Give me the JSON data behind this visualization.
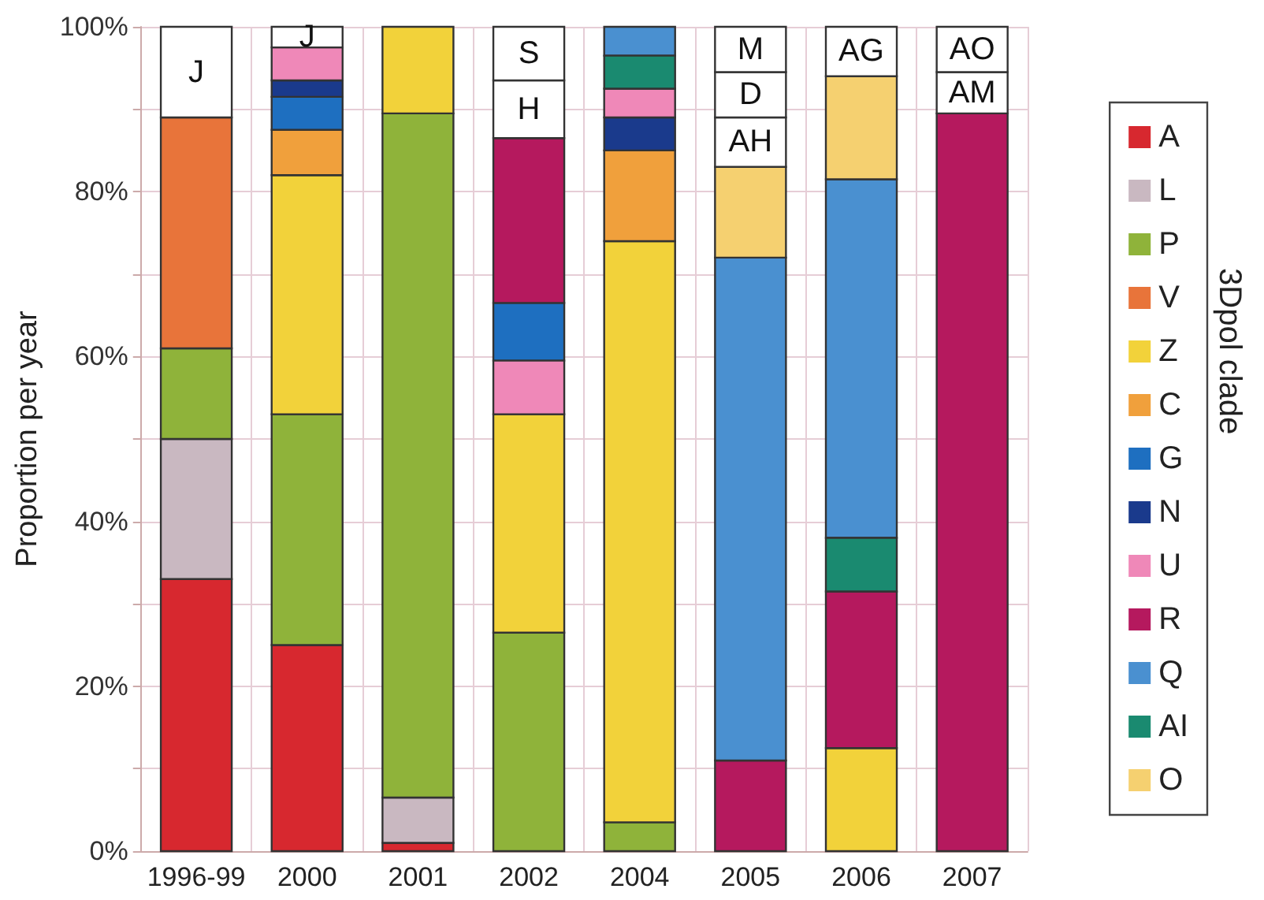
{
  "chart_data": {
    "type": "bar",
    "ylabel": "Proportion per year",
    "legend_title": "3Dpol clade",
    "legend": "right",
    "grid": true,
    "categories": [
      "1996-99",
      "2000",
      "2001",
      "2002",
      "2004",
      "2005",
      "2006",
      "2007"
    ],
    "ylim": [
      0,
      100
    ],
    "yticks": [
      {
        "value": 0,
        "label": "0%"
      },
      {
        "value": 10,
        "label": null
      },
      {
        "value": 20,
        "label": "20%"
      },
      {
        "value": 30,
        "label": null
      },
      {
        "value": 40,
        "label": "40%"
      },
      {
        "value": 50,
        "label": null
      },
      {
        "value": 60,
        "label": "60%"
      },
      {
        "value": 70,
        "label": null
      },
      {
        "value": 80,
        "label": "80%"
      },
      {
        "value": 90,
        "label": null
      },
      {
        "value": 100,
        "label": "100%"
      }
    ],
    "series": [
      {
        "name": "A",
        "color": "#d7282f",
        "values": [
          33,
          25,
          1,
          null,
          null,
          null,
          null,
          null
        ],
        "base": [
          0,
          0,
          0,
          null,
          null,
          null,
          null,
          null
        ]
      },
      {
        "name": "L",
        "color": "#c9b8c1",
        "values": [
          17,
          null,
          5.5,
          null,
          null,
          null,
          null,
          null
        ],
        "base": [
          33,
          null,
          1,
          null,
          null,
          null,
          null,
          null
        ]
      },
      {
        "name": "P",
        "color": "#8fb33a",
        "values": [
          11,
          28,
          83,
          26.5,
          3.5,
          null,
          null,
          null
        ],
        "base": [
          50,
          25,
          6.5,
          0,
          0,
          null,
          null,
          null
        ]
      },
      {
        "name": "V",
        "color": "#e8743a",
        "values": [
          28,
          null,
          null,
          null,
          null,
          null,
          null,
          null
        ],
        "base": [
          61,
          null,
          null,
          null,
          null,
          null,
          null,
          null
        ]
      },
      {
        "name": "Z",
        "color": "#f2d23a",
        "values": [
          null,
          29,
          10.5,
          26.5,
          70.5,
          null,
          12.5,
          null
        ],
        "base": [
          null,
          53,
          89.5,
          26.5,
          3.5,
          null,
          0,
          null
        ]
      },
      {
        "name": "C",
        "color": "#f0a03c",
        "values": [
          null,
          5.5,
          null,
          null,
          11,
          null,
          null,
          null
        ],
        "base": [
          null,
          82,
          null,
          null,
          74,
          null,
          null,
          null
        ]
      },
      {
        "name": "G",
        "color": "#1e6fc0",
        "values": [
          null,
          4,
          null,
          7,
          null,
          null,
          null,
          null
        ],
        "base": [
          null,
          87.5,
          null,
          59.5,
          null,
          null,
          null,
          null
        ]
      },
      {
        "name": "N",
        "color": "#1a3a8c",
        "values": [
          null,
          2,
          null,
          null,
          4,
          null,
          null,
          null
        ],
        "base": [
          null,
          91.5,
          null,
          null,
          85,
          null,
          null,
          null
        ]
      },
      {
        "name": "U",
        "color": "#ef88b8",
        "values": [
          null,
          4,
          null,
          6.5,
          3.5,
          null,
          null,
          null
        ],
        "base": [
          null,
          93.5,
          null,
          53,
          89,
          null,
          null,
          null
        ]
      },
      {
        "name": "R",
        "color": "#b5195e",
        "values": [
          null,
          null,
          null,
          20,
          null,
          11,
          19,
          89.5
        ],
        "base": [
          null,
          null,
          null,
          66.5,
          null,
          0,
          12.5,
          0
        ]
      },
      {
        "name": "Q",
        "color": "#4a90d0",
        "values": [
          null,
          null,
          null,
          null,
          3.5,
          61,
          43.5,
          null
        ],
        "base": [
          null,
          null,
          null,
          null,
          96.5,
          11,
          38,
          null
        ]
      },
      {
        "name": "AI",
        "color": "#1a8a70",
        "values": [
          null,
          null,
          null,
          null,
          4,
          null,
          6.5,
          null
        ],
        "base": [
          null,
          null,
          null,
          null,
          92.5,
          null,
          31.5,
          null
        ]
      },
      {
        "name": "O",
        "color": "#f5d070",
        "values": [
          null,
          null,
          null,
          null,
          null,
          11,
          12.5,
          null
        ],
        "base": [
          null,
          null,
          null,
          null,
          null,
          72,
          81.5,
          null
        ]
      },
      {
        "color": "#ffffff",
        "values": [
          11,
          2.5,
          null,
          7,
          null,
          6,
          6,
          5
        ],
        "base": [
          89,
          97.5,
          null,
          86.5,
          null,
          83,
          94,
          89.5
        ],
        "value_labels": [
          "J",
          "J",
          null,
          "H",
          null,
          "AH",
          "AG",
          "AM"
        ]
      },
      {
        "color": "#ffffff",
        "values": [
          null,
          null,
          null,
          6.5,
          null,
          5.5,
          null,
          5.5
        ],
        "base": [
          null,
          null,
          null,
          93.5,
          null,
          89,
          null,
          94.5
        ],
        "value_labels": [
          null,
          null,
          null,
          "S",
          null,
          "D",
          null,
          "AO"
        ]
      },
      {
        "color": "#ffffff",
        "values": [
          null,
          null,
          null,
          null,
          null,
          5.5,
          null,
          null
        ],
        "base": [
          null,
          null,
          null,
          null,
          null,
          94.5,
          null,
          null
        ],
        "value_labels": [
          null,
          null,
          null,
          null,
          null,
          "M",
          null,
          null
        ]
      }
    ]
  }
}
